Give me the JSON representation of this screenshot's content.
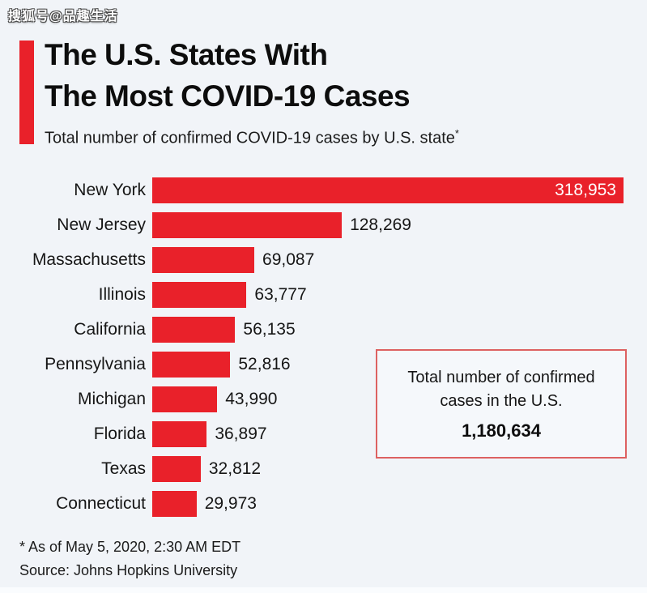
{
  "watermark": {
    "text": "搜狐号@品趣生活"
  },
  "header": {
    "title_line1": "The U.S. States With",
    "title_line2": "The Most COVID-19 Cases",
    "subtitle": "Total number of confirmed COVID-19 cases by U.S. state",
    "subtitle_footnote_marker": "*"
  },
  "chart_data": {
    "type": "bar",
    "orientation": "horizontal",
    "title": "The U.S. States With The Most COVID-19 Cases",
    "xlabel": "",
    "ylabel": "",
    "xlim": [
      0,
      318953
    ],
    "grid": false,
    "legend": false,
    "bar_color": "#e9212a",
    "categories": [
      "New York",
      "New Jersey",
      "Massachusetts",
      "Illinois",
      "California",
      "Pennsylvania",
      "Michigan",
      "Florida",
      "Texas",
      "Connecticut"
    ],
    "values": [
      318953,
      128269,
      69087,
      63777,
      56135,
      52816,
      43990,
      36897,
      32812,
      29973
    ],
    "value_labels": [
      "318,953",
      "128,269",
      "69,087",
      "63,777",
      "56,135",
      "52,816",
      "43,990",
      "36,897",
      "32,812",
      "29,973"
    ],
    "first_value_inside_bar": true
  },
  "total_box": {
    "line1": "Total number of confirmed",
    "line2": "cases in the U.S.",
    "value": "1,180,634"
  },
  "footer": {
    "footnote": "* As of May 5, 2020, 2:30 AM EDT",
    "source": "Source: Johns Hopkins University"
  },
  "colors": {
    "background": "#f1f4f8",
    "bar_red": "#e9212a",
    "accent_red": "#e9212a",
    "total_box_border": "#dd6161",
    "title_text": "#0d0d0d",
    "inside_value_text": "#ffffff"
  }
}
